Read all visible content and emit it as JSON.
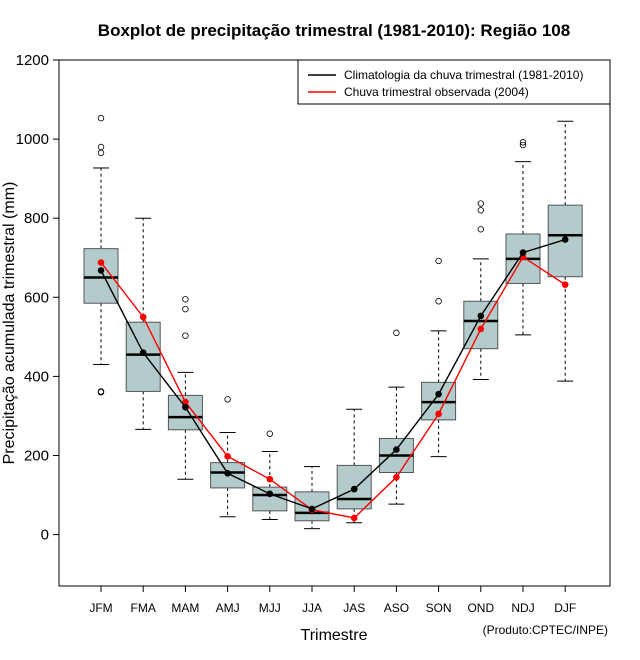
{
  "chart_data": {
    "type": "boxplot",
    "title": "Boxplot de precipitação trimestral (1981-2010): Região 108",
    "xlabel": "Trimestre",
    "ylabel": "Precipitação acumulada trimestral (mm)",
    "ylim": [
      -130,
      1200
    ],
    "yticks": [
      0,
      200,
      400,
      600,
      800,
      1000,
      1200
    ],
    "categories": [
      "JFM",
      "FMA",
      "MAM",
      "AMJ",
      "MJJ",
      "JJA",
      "JAS",
      "ASO",
      "SON",
      "OND",
      "NDJ",
      "DJF"
    ],
    "boxes": [
      {
        "label": "JFM",
        "min": 430,
        "q1": 585,
        "median": 650,
        "q3": 723,
        "max": 927,
        "outliers": [
          360,
          362,
          965,
          980,
          1053
        ]
      },
      {
        "label": "FMA",
        "min": 266,
        "q1": 362,
        "median": 455,
        "q3": 537,
        "max": 800,
        "outliers": []
      },
      {
        "label": "MAM",
        "min": 140,
        "q1": 265,
        "median": 297,
        "q3": 352,
        "max": 410,
        "outliers": [
          503,
          570,
          595
        ]
      },
      {
        "label": "AMJ",
        "min": 45,
        "q1": 118,
        "median": 157,
        "q3": 182,
        "max": 258,
        "outliers": [
          342
        ]
      },
      {
        "label": "MJJ",
        "min": 38,
        "q1": 60,
        "median": 100,
        "q3": 120,
        "max": 210,
        "outliers": [
          255
        ]
      },
      {
        "label": "JJA",
        "min": 15,
        "q1": 35,
        "median": 55,
        "q3": 108,
        "max": 172,
        "outliers": []
      },
      {
        "label": "JAS",
        "min": 30,
        "q1": 65,
        "median": 90,
        "q3": 175,
        "max": 317,
        "outliers": []
      },
      {
        "label": "ASO",
        "min": 77,
        "q1": 157,
        "median": 200,
        "q3": 243,
        "max": 373,
        "outliers": [
          510
        ]
      },
      {
        "label": "SON",
        "min": 197,
        "q1": 290,
        "median": 335,
        "q3": 385,
        "max": 515,
        "outliers": [
          590,
          692
        ]
      },
      {
        "label": "OND",
        "min": 392,
        "q1": 470,
        "median": 540,
        "q3": 590,
        "max": 697,
        "outliers": [
          772,
          820,
          837
        ]
      },
      {
        "label": "NDJ",
        "min": 505,
        "q1": 635,
        "median": 697,
        "q3": 760,
        "max": 943,
        "outliers": [
          985,
          992
        ]
      },
      {
        "label": "DJF",
        "min": 388,
        "q1": 652,
        "median": 757,
        "q3": 833,
        "max": 1045,
        "outliers": []
      }
    ],
    "series": [
      {
        "name": "Climatologia da chuva trimestral (1981-2010)",
        "color": "#000000",
        "values": [
          668,
          460,
          322,
          155,
          103,
          65,
          115,
          215,
          355,
          553,
          713,
          746
        ]
      },
      {
        "name": "Chuva trimestral observada (2004)",
        "color": "#ff0000",
        "values": [
          688,
          550,
          335,
          198,
          140,
          63,
          42,
          145,
          305,
          520,
          702,
          632
        ]
      }
    ],
    "box_fill": "#b4cbcc",
    "legend_position": "top-right",
    "grid": false
  },
  "credit": "(Produto:CPTEC/INPE)"
}
